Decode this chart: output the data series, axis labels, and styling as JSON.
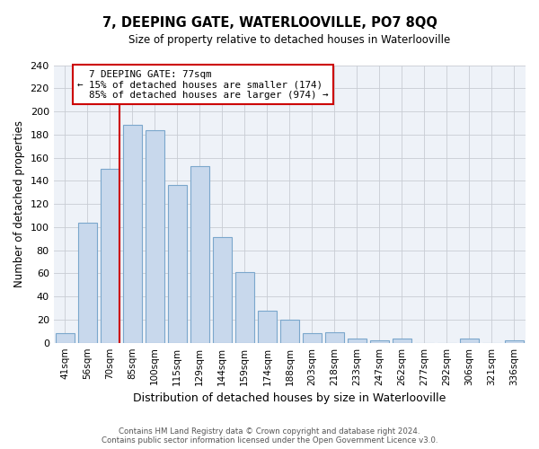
{
  "title": "7, DEEPING GATE, WATERLOOVILLE, PO7 8QQ",
  "subtitle": "Size of property relative to detached houses in Waterlooville",
  "xlabel": "Distribution of detached houses by size in Waterlooville",
  "ylabel": "Number of detached properties",
  "bin_labels": [
    "41sqm",
    "56sqm",
    "70sqm",
    "85sqm",
    "100sqm",
    "115sqm",
    "129sqm",
    "144sqm",
    "159sqm",
    "174sqm",
    "188sqm",
    "203sqm",
    "218sqm",
    "233sqm",
    "247sqm",
    "262sqm",
    "277sqm",
    "292sqm",
    "306sqm",
    "321sqm",
    "336sqm"
  ],
  "bar_heights": [
    8,
    104,
    150,
    188,
    184,
    136,
    153,
    91,
    61,
    28,
    20,
    8,
    9,
    4,
    2,
    4,
    0,
    0,
    4,
    0,
    2
  ],
  "bar_color": "#c8d8ec",
  "bar_edge_color": "#7ba7cc",
  "marker_line_color": "#cc0000",
  "annotation_box_edge_color": "#cc0000",
  "annotation_line1": "7 DEEPING GATE: 77sqm",
  "annotation_line2": "← 15% of detached houses are smaller (174)",
  "annotation_line3": "85% of detached houses are larger (974) →",
  "ylim": [
    0,
    240
  ],
  "yticks": [
    0,
    20,
    40,
    60,
    80,
    100,
    120,
    140,
    160,
    180,
    200,
    220,
    240
  ],
  "footer_line1": "Contains HM Land Registry data © Crown copyright and database right 2024.",
  "footer_line2": "Contains public sector information licensed under the Open Government Licence v3.0.",
  "figsize": [
    6.0,
    5.0
  ],
  "dpi": 100,
  "bg_color": "#eef2f8"
}
